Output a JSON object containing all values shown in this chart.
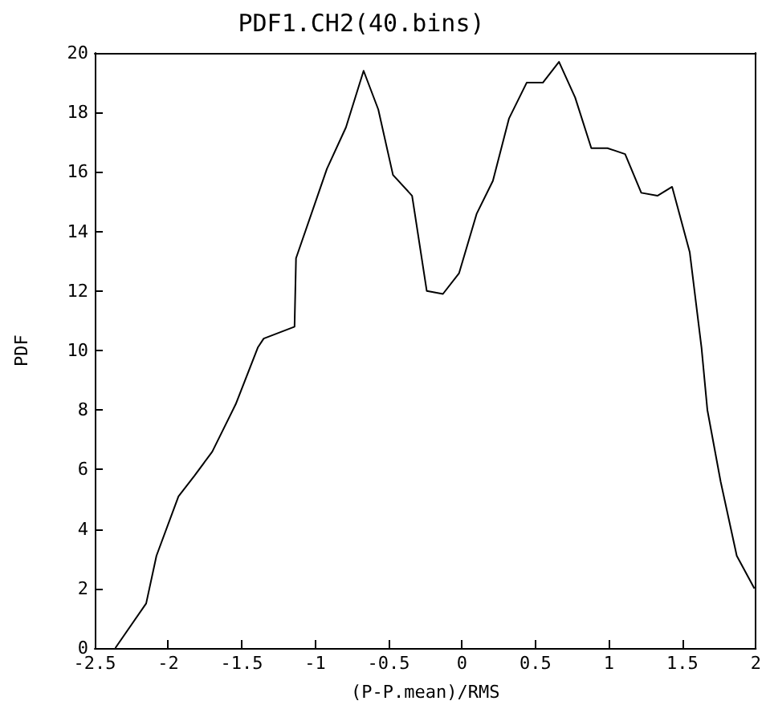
{
  "chart_data": {
    "type": "line",
    "title": "PDF1.CH2(40.bins)",
    "xlabel": "(P-P.mean)/RMS",
    "ylabel": "PDF",
    "x": [
      -2.36,
      -2.15,
      -2.08,
      -1.93,
      -1.82,
      -1.7,
      -1.54,
      -1.39,
      -1.35,
      -1.14,
      -1.13,
      -0.92,
      -0.79,
      -0.67,
      -0.57,
      -0.47,
      -0.34,
      -0.24,
      -0.13,
      -0.02,
      0.1,
      0.21,
      0.32,
      0.44,
      0.55,
      0.66,
      0.77,
      0.88,
      0.99,
      1.11,
      1.22,
      1.33,
      1.43,
      1.55,
      1.63,
      1.67,
      1.76,
      1.87,
      1.99
    ],
    "series": [
      {
        "color": "#000000",
        "values": [
          0,
          1.5,
          3.1,
          5.1,
          5.8,
          6.6,
          8.2,
          10.1,
          10.4,
          10.8,
          13.1,
          16.1,
          17.5,
          19.4,
          18.1,
          15.9,
          15.2,
          12,
          11.9,
          12.6,
          14.6,
          15.7,
          17.8,
          19,
          19,
          19.7,
          18.5,
          16.8,
          16.8,
          16.6,
          15.3,
          15.2,
          15.5,
          13.3,
          10.1,
          8,
          5.6,
          3.1,
          2
        ]
      }
    ],
    "xlim": [
      -2.5,
      2
    ],
    "xticks": [
      -2.5,
      -2,
      -1.5,
      -1,
      -0.5,
      0,
      0.5,
      1,
      1.5,
      2
    ],
    "ylim": [
      0,
      20
    ],
    "yticks": [
      0,
      2,
      4,
      6,
      8,
      10,
      12,
      14,
      16,
      18,
      20
    ],
    "grid": false,
    "marker": "none",
    "line_style": "solid"
  }
}
